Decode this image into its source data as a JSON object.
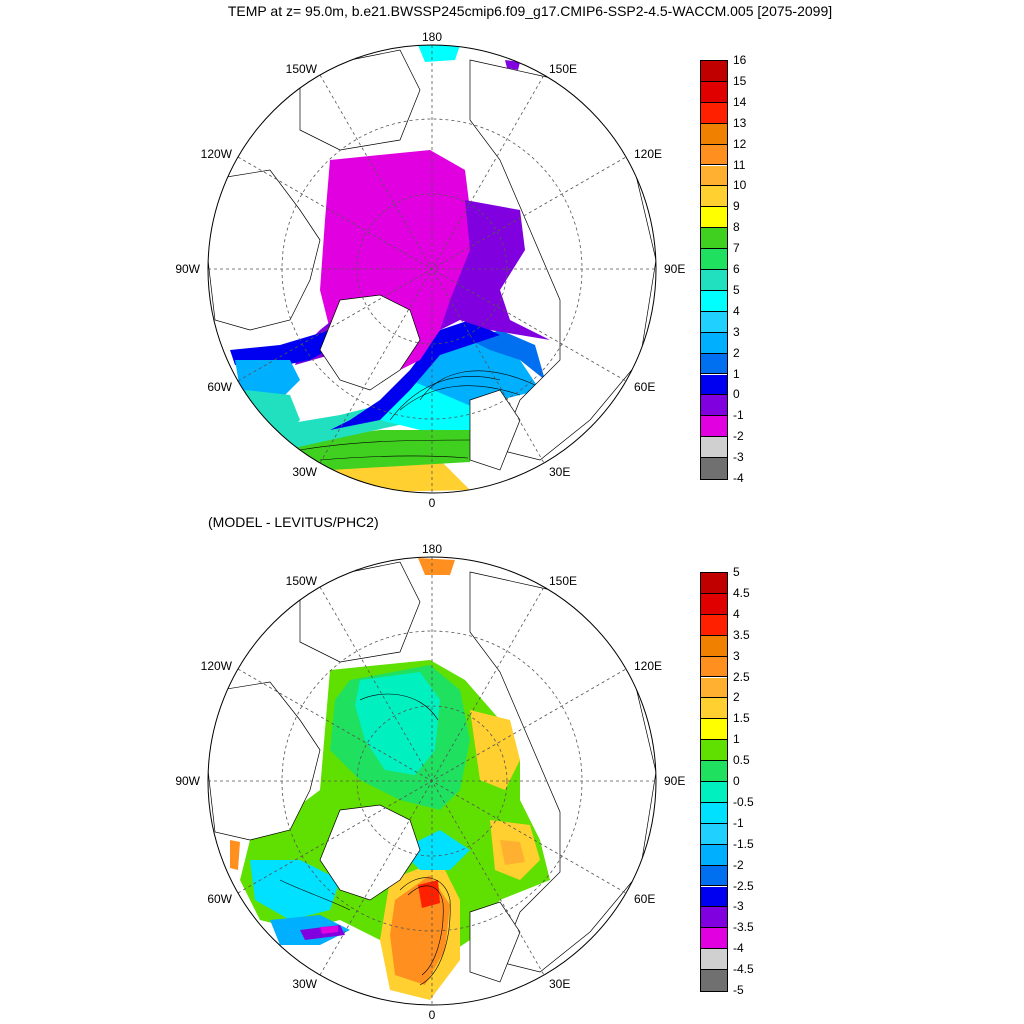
{
  "title": "TEMP at z=  95.0m, b.e21.BWSSP245cmip6.f09_g17.CMIP6-SSP2-4.5-WACCM.005 [2075-2099]",
  "subtitle": "(MODEL - LEVITUS/PHC2)",
  "longitude_labels": {
    "top": "180",
    "bottom": "0",
    "left": "90W",
    "right": "90E",
    "upper_left": "150W",
    "upper_right": "150E",
    "mid_upper_left": "120W",
    "mid_upper_right": "120E",
    "mid_lower_left": "60W",
    "mid_lower_right": "60E",
    "lower_left": "30W",
    "lower_right": "30E"
  },
  "panels": [
    {
      "name": "model-temperature",
      "colorbar": {
        "labels": [
          "16",
          "15",
          "14",
          "13",
          "12",
          "11",
          "10",
          "9",
          "8",
          "7",
          "6",
          "5",
          "4",
          "3",
          "2",
          "1",
          "0",
          "-1",
          "-2",
          "-3",
          "-4"
        ],
        "colors": [
          "#c00000",
          "#e00000",
          "#ff2000",
          "#f08000",
          "#ff9020",
          "#ffb030",
          "#ffd030",
          "#ffff00",
          "#40d020",
          "#20e060",
          "#20e0c0",
          "#00ffff",
          "#20d0ff",
          "#00b0ff",
          "#0070f0",
          "#0000f0",
          "#8000e0",
          "#e000e0",
          "#d0d0d0",
          "#707070"
        ]
      }
    },
    {
      "name": "model-minus-levitus",
      "colorbar": {
        "labels": [
          "5",
          "4.5",
          "4",
          "3.5",
          "3",
          "2.5",
          "2",
          "1.5",
          "1",
          "0.5",
          "0",
          "-0.5",
          "-1",
          "-1.5",
          "-2",
          "-2.5",
          "-3",
          "-3.5",
          "-4",
          "-4.5",
          "-5"
        ],
        "colors": [
          "#c00000",
          "#e00000",
          "#ff2000",
          "#f08000",
          "#ff9020",
          "#ffb030",
          "#ffd030",
          "#ffff00",
          "#60e000",
          "#20e060",
          "#00f0c0",
          "#00e0ff",
          "#20d0ff",
          "#00b0ff",
          "#0070f0",
          "#0000f0",
          "#8000e0",
          "#e000e0",
          "#d0d0d0",
          "#707070"
        ]
      }
    }
  ]
}
